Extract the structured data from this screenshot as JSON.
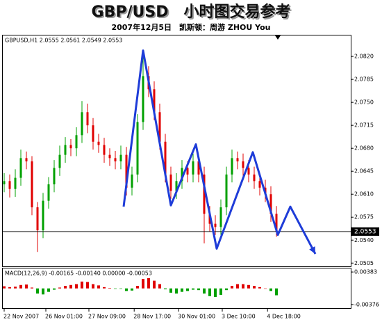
{
  "title": "GBP/USD　小时图交易参考",
  "subtitle": "2007年12月5日　凯斯顿：周游 ZHOU You",
  "chart_data": [
    {
      "type": "candlestick",
      "label": "GBPUSD,H1 2.0555 2.0561 2.0549 2.0553",
      "up_color": "#00a000",
      "down_color": "#e00000",
      "x": [
        0,
        1,
        2,
        3,
        4,
        5,
        6,
        7,
        8,
        9,
        10,
        11,
        12,
        13,
        14,
        15,
        16,
        17,
        18,
        19,
        20,
        21,
        22,
        23,
        24,
        25,
        26,
        27,
        28,
        29,
        30,
        31,
        32,
        33,
        34,
        35,
        36,
        37,
        38,
        39,
        40,
        41,
        42,
        43,
        44,
        45,
        46,
        47,
        48,
        49
      ],
      "open": [
        2.0625,
        2.063,
        2.0618,
        2.0635,
        2.0665,
        2.066,
        2.059,
        2.0555,
        2.06,
        2.0625,
        2.065,
        2.067,
        2.0685,
        2.068,
        2.07,
        2.0735,
        2.0715,
        2.069,
        2.0685,
        2.067,
        2.0665,
        2.066,
        2.067,
        2.062,
        2.064,
        2.072,
        2.079,
        2.077,
        2.0735,
        2.069,
        2.064,
        2.0615,
        2.063,
        2.065,
        2.064,
        2.066,
        2.064,
        2.058,
        2.0565,
        2.056,
        2.059,
        2.064,
        2.0665,
        2.066,
        2.065,
        2.064,
        2.063,
        2.062,
        2.061,
        2.058
      ],
      "high": [
        2.0642,
        2.064,
        2.0648,
        2.0678,
        2.0675,
        2.0668,
        2.0598,
        2.0612,
        2.0636,
        2.0662,
        2.0684,
        2.0697,
        2.0694,
        2.0712,
        2.0752,
        2.0748,
        2.0726,
        2.0702,
        2.0696,
        2.068,
        2.0676,
        2.0684,
        2.0682,
        2.0652,
        2.0732,
        2.0822,
        2.0805,
        2.0782,
        2.0748,
        2.0702,
        2.0652,
        2.0642,
        2.0662,
        2.066,
        2.0672,
        2.067,
        2.0652,
        2.0592,
        2.0578,
        2.0602,
        2.0652,
        2.0678,
        2.0675,
        2.0672,
        2.0662,
        2.0652,
        2.064,
        2.0632,
        2.0622,
        2.0592
      ],
      "low": [
        2.0613,
        2.0605,
        2.0606,
        2.0623,
        2.0648,
        2.0578,
        2.0522,
        2.0543,
        2.0588,
        2.0613,
        2.0638,
        2.0658,
        2.0668,
        2.0668,
        2.0688,
        2.0703,
        2.0678,
        2.0673,
        2.0658,
        2.0653,
        2.0648,
        2.0648,
        2.0608,
        2.0608,
        2.0628,
        2.0708,
        2.0758,
        2.0723,
        2.0678,
        2.0628,
        2.0603,
        2.0603,
        2.0618,
        2.0628,
        2.0628,
        2.0628,
        2.0535,
        2.0553,
        2.0548,
        2.0548,
        2.0578,
        2.0628,
        2.0648,
        2.0638,
        2.0628,
        2.0618,
        2.0608,
        2.0598,
        2.0568,
        2.0545
      ],
      "close": [
        2.063,
        2.0618,
        2.0635,
        2.0665,
        2.066,
        2.059,
        2.0555,
        2.06,
        2.0625,
        2.065,
        2.067,
        2.0685,
        2.068,
        2.07,
        2.0735,
        2.0715,
        2.069,
        2.0685,
        2.067,
        2.0665,
        2.066,
        2.067,
        2.062,
        2.064,
        2.072,
        2.079,
        2.077,
        2.0735,
        2.069,
        2.064,
        2.0615,
        2.063,
        2.065,
        2.064,
        2.066,
        2.064,
        2.058,
        2.0565,
        2.056,
        2.059,
        2.064,
        2.0665,
        2.066,
        2.065,
        2.064,
        2.063,
        2.062,
        2.061,
        2.058,
        2.0553
      ],
      "last": 2.0553,
      "overlay": {
        "color": "#1e3cd8",
        "x": [
          21.5,
          25,
          30,
          34.5,
          38.25,
          44.75,
          49.25,
          51.5,
          56
        ],
        "values": [
          2.0591,
          2.0829,
          2.0593,
          2.0686,
          2.0527,
          2.0674,
          2.0548,
          2.0591,
          2.0519
        ]
      },
      "xlim": [
        -0.375,
        62.375
      ],
      "xticks": [
        {
          "value": 0,
          "label": "22 Nov 2007"
        },
        {
          "value": 7.5,
          "label": "26 Nov 01:00"
        },
        {
          "value": 15.25,
          "label": "27 Nov 09:00"
        },
        {
          "value": 23.4,
          "label": "28 Nov 17:00"
        },
        {
          "value": 31.4,
          "label": "30 Nov 01:00"
        },
        {
          "value": 39.25,
          "label": "3 Dec 10:00"
        },
        {
          "value": 47.4,
          "label": "4 Dec 18:00"
        }
      ],
      "ylim": [
        2.05,
        2.0853
      ],
      "yticks": [
        {
          "value": 2.082,
          "label": "2.0820"
        },
        2.0785,
        {
          "value": 2.075,
          "label": "2.0750"
        },
        2.0715,
        {
          "value": 2.068,
          "label": "2.0680"
        },
        2.0645,
        {
          "value": 2.061,
          "label": "2.0610"
        },
        2.0575,
        {
          "value": 2.054,
          "label": "2.0540"
        },
        2.0505
      ]
    },
    {
      "type": "histogram-bar",
      "label": "MACD(12,26,9) -0.00165 -0.00140 0.00000 -0.00053",
      "positive_color": "#e00000",
      "negative_color": "#00a000",
      "x": [
        0,
        1,
        2,
        3,
        4,
        5,
        6,
        7,
        8,
        9,
        10,
        11,
        12,
        13,
        14,
        15,
        16,
        17,
        18,
        19,
        20,
        21,
        22,
        23,
        24,
        25,
        26,
        27,
        28,
        29,
        30,
        31,
        32,
        33,
        34,
        35,
        36,
        37,
        38,
        39,
        40,
        41,
        42,
        43,
        44,
        45,
        46,
        47,
        48,
        49
      ],
      "values": [
        0.0005,
        0.0003,
        0.0004,
        0.0008,
        0.0009,
        0.0002,
        -0.0012,
        -0.0014,
        -0.0008,
        -0.0003,
        0.0002,
        0.0006,
        0.0008,
        0.001,
        0.0016,
        0.0015,
        0.001,
        0.0007,
        0.0003,
        0.0001,
        -0.0001,
        -0.0001,
        -0.0006,
        -0.0005,
        0.0006,
        0.0022,
        0.0024,
        0.0018,
        0.001,
        -0.0002,
        -0.001,
        -0.0012,
        -0.0008,
        -0.0006,
        -0.0003,
        -0.0004,
        -0.0012,
        -0.0018,
        -0.002,
        -0.0015,
        -0.0004,
        0.0006,
        0.001,
        0.001,
        0.0008,
        0.0006,
        0.0003,
        0,
        -0.0006,
        -0.0016
      ],
      "ylim": [
        -0.00459,
        0.00482
      ],
      "yticks": [
        0.00383,
        -0.00376
      ]
    }
  ]
}
